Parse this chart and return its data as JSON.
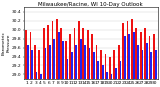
{
  "title": "Milwaukee/Racine, WI 10-Day Outlook",
  "subtitle": "Barometric\nPressure",
  "y_axis_labels": [
    "29.0",
    "29.2",
    "29.4",
    "29.6",
    "29.8",
    "30.0",
    "30.2",
    "30.4"
  ],
  "ylim": [
    28.9,
    30.5
  ],
  "x_labels": [
    "1",
    "2",
    "3",
    "4",
    "5",
    "6",
    "7",
    "8",
    "9",
    "10",
    "11",
    "12",
    "13",
    "14",
    "15",
    "16",
    "17",
    "18",
    "19",
    "20",
    "21",
    "22",
    "23",
    "24",
    "25",
    "26",
    "27",
    "28",
    "29",
    "30"
  ],
  "highs": [
    30.0,
    29.95,
    29.65,
    29.55,
    30.05,
    30.1,
    30.2,
    30.25,
    30.05,
    29.75,
    29.9,
    30.05,
    30.2,
    30.05,
    30.0,
    29.9,
    29.65,
    29.55,
    29.45,
    29.4,
    29.55,
    29.65,
    30.15,
    30.2,
    30.25,
    30.05,
    29.95,
    30.05,
    29.85,
    29.9
  ],
  "lows": [
    29.65,
    29.55,
    29.05,
    29.0,
    29.6,
    29.65,
    29.8,
    29.95,
    29.75,
    29.35,
    29.5,
    29.65,
    29.8,
    29.65,
    29.6,
    29.5,
    29.3,
    29.2,
    29.05,
    29.0,
    29.15,
    29.3,
    29.85,
    29.9,
    29.95,
    29.65,
    29.55,
    29.7,
    29.5,
    29.55
  ],
  "high_color": "#ee1111",
  "low_color": "#2222ee",
  "bg_color": "#ffffff",
  "plot_bg": "#ffffff",
  "bar_width": 0.4,
  "title_fontsize": 4.0,
  "tick_fontsize": 3.2,
  "ylabel_fontsize": 3.2
}
